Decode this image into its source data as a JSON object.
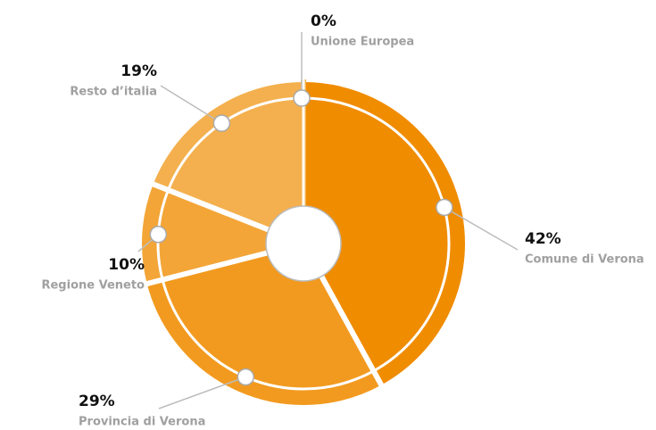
{
  "chart_data": {
    "type": "pie",
    "categories": [
      "Comune di Verona",
      "Provincia di Verona",
      "Regione Veneto",
      "Resto d’italia",
      "Unione Europea"
    ],
    "values": [
      42,
      29,
      10,
      19,
      0
    ],
    "value_labels": [
      "42%",
      "29%",
      "10%",
      "19%",
      "0%"
    ],
    "colors": [
      "#f08c00",
      "#f29a1f",
      "#f3a537",
      "#f4b04e",
      "#f4b04e"
    ]
  }
}
